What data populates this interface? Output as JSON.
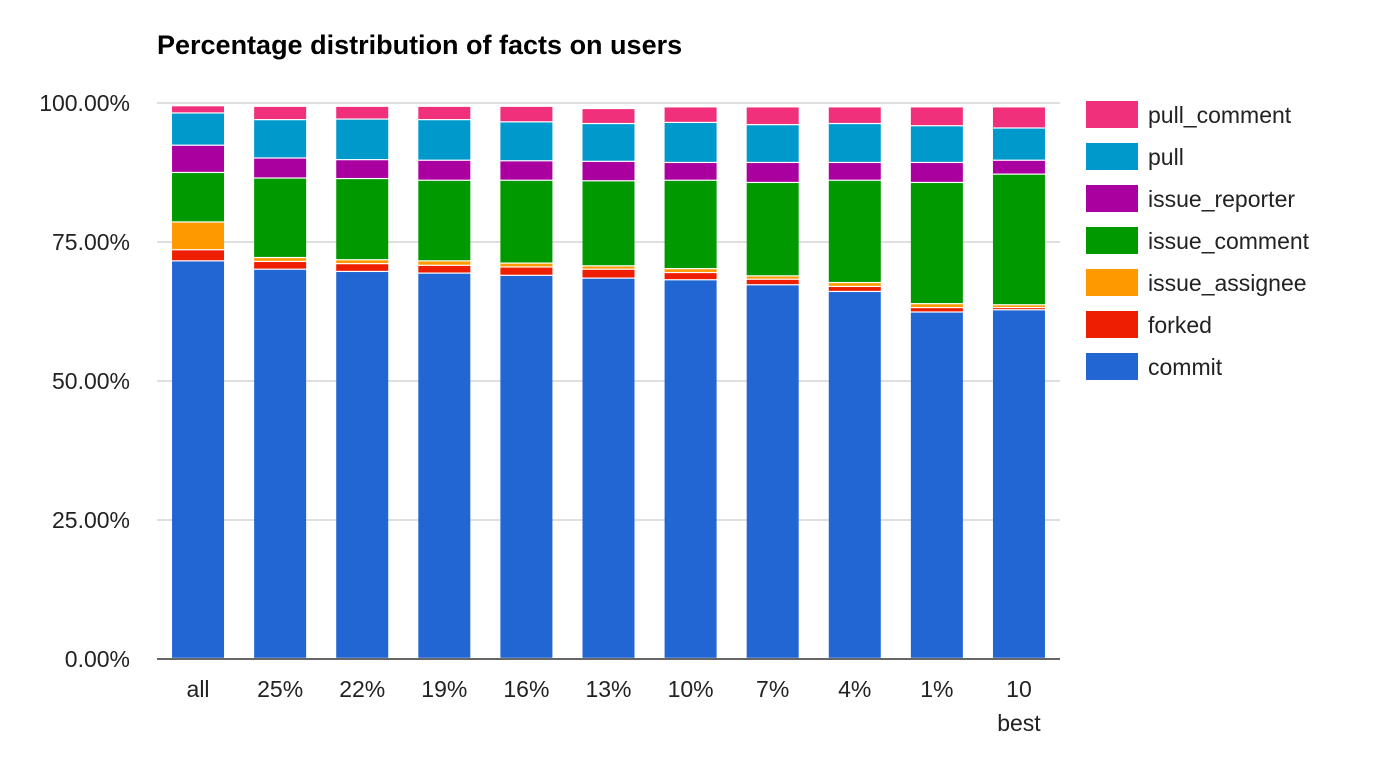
{
  "chart_data": {
    "type": "bar",
    "stacked": true,
    "title": "Percentage distribution of facts on users",
    "xlabel": "",
    "ylabel": "",
    "ylim": [
      0,
      100
    ],
    "yticks": [
      0,
      25,
      50,
      75,
      100
    ],
    "ytick_labels": [
      "0.00%",
      "25.00%",
      "50.00%",
      "75.00%",
      "100.00%"
    ],
    "grid": true,
    "legend_position": "right",
    "categories": [
      "all",
      "25%",
      "22%",
      "19%",
      "16%",
      "13%",
      "10%",
      "7%",
      "4%",
      "1%",
      "10 best"
    ],
    "series": [
      {
        "name": "commit",
        "color": "#2266d4",
        "values": [
          71.5,
          70.0,
          69.6,
          69.3,
          68.9,
          68.4,
          68.1,
          67.2,
          66.0,
          62.3,
          62.7
        ]
      },
      {
        "name": "forked",
        "color": "#ee1e00",
        "values": [
          2.0,
          1.4,
          1.4,
          1.4,
          1.5,
          1.6,
          1.3,
          1.0,
          0.9,
          0.8,
          0.4
        ]
      },
      {
        "name": "issue_assignee",
        "color": "#ff9900",
        "values": [
          5.0,
          0.7,
          0.7,
          0.8,
          0.7,
          0.6,
          0.7,
          0.6,
          0.7,
          0.7,
          0.5
        ]
      },
      {
        "name": "issue_comment",
        "color": "#009900",
        "values": [
          8.9,
          14.3,
          14.6,
          14.5,
          14.9,
          15.3,
          15.9,
          16.8,
          18.4,
          21.8,
          23.5
        ]
      },
      {
        "name": "issue_reporter",
        "color": "#aa00a0",
        "values": [
          4.9,
          3.6,
          3.4,
          3.6,
          3.5,
          3.5,
          3.2,
          3.6,
          3.2,
          3.6,
          2.5
        ]
      },
      {
        "name": "pull",
        "color": "#0099cc",
        "values": [
          5.8,
          6.9,
          7.3,
          7.3,
          7.0,
          6.8,
          7.2,
          6.8,
          7.0,
          6.6,
          5.8
        ]
      },
      {
        "name": "pull_comment",
        "color": "#f0307a",
        "values": [
          1.3,
          2.4,
          2.3,
          2.4,
          2.8,
          2.7,
          2.8,
          3.2,
          3.0,
          3.4,
          3.8
        ]
      }
    ],
    "legend_order": [
      "pull_comment",
      "pull",
      "issue_reporter",
      "issue_comment",
      "issue_assignee",
      "forked",
      "commit"
    ]
  }
}
